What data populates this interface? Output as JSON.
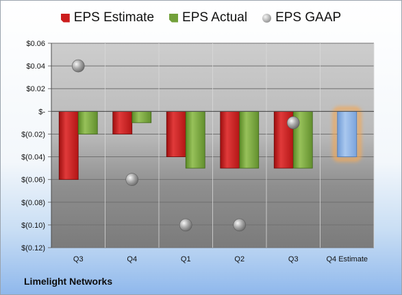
{
  "company": "Limelight Networks",
  "colors": {
    "estimate": "#cc1d1d",
    "actual": "#72a03a",
    "gaap": "#a6a6a6",
    "future_estimate": "#8fb4e3",
    "future_glow": "#f0a85a"
  },
  "chart_data": {
    "type": "bar",
    "categories": [
      "Q3",
      "Q4",
      "Q1",
      "Q2",
      "Q3",
      "Q4 Estimate"
    ],
    "series": [
      {
        "name": "EPS Estimate",
        "kind": "bar",
        "values": [
          -0.06,
          -0.02,
          -0.04,
          -0.05,
          -0.05,
          -0.04
        ]
      },
      {
        "name": "EPS Actual",
        "kind": "bar",
        "values": [
          -0.02,
          -0.01,
          -0.05,
          -0.05,
          -0.05,
          null
        ]
      },
      {
        "name": "EPS GAAP",
        "kind": "scatter",
        "values": [
          0.04,
          -0.06,
          -0.1,
          -0.1,
          -0.01,
          null
        ]
      }
    ],
    "highlighted_category": "Q4 Estimate",
    "y_ticks": [
      0.06,
      0.04,
      0.02,
      0,
      -0.02,
      -0.04,
      -0.06,
      -0.08,
      -0.1,
      -0.12
    ],
    "y_tick_labels": [
      "$0.06",
      "$0.04",
      "$0.02",
      "$-",
      "$(0.02)",
      "$(0.04)",
      "$(0.06)",
      "$(0.08)",
      "$(0.10)",
      "$(0.12)"
    ],
    "ylim": [
      -0.12,
      0.06
    ],
    "grid": true,
    "legend_position": "top"
  }
}
